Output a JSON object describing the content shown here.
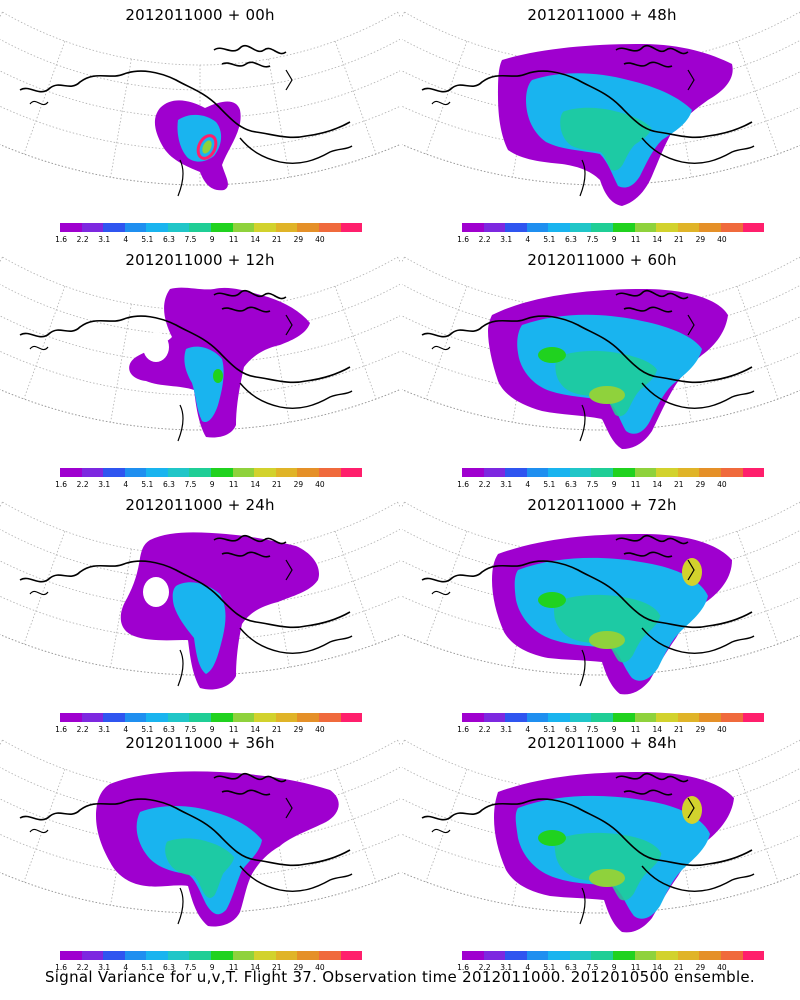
{
  "figure": {
    "caption": "Signal Variance for u,v,T. Flight 37. Observation time 2012011000. 2012010500 ensemble."
  },
  "colorbar": {
    "labels": [
      "1.6",
      "2.2",
      "3.1",
      "4",
      "5.1",
      "6.3",
      "7.5",
      "9",
      "11",
      "14",
      "21",
      "29",
      "40"
    ],
    "colors": [
      "#9f00cf",
      "#7d28e0",
      "#2f55f0",
      "#1f8ff0",
      "#19b4ef",
      "#20c6c8",
      "#1fce96",
      "#20d21f",
      "#8fd23c",
      "#d2d22d",
      "#e0b428",
      "#e59028",
      "#f06a3c",
      "#ff1f6c"
    ]
  },
  "panels": [
    {
      "title": "2012011000 + 00h",
      "lead": 0
    },
    {
      "title": "2012011000 + 12h",
      "lead": 12
    },
    {
      "title": "2012011000 + 24h",
      "lead": 24
    },
    {
      "title": "2012011000 + 36h",
      "lead": 36
    },
    {
      "title": "2012011000 + 48h",
      "lead": 48
    },
    {
      "title": "2012011000 + 60h",
      "lead": 60
    },
    {
      "title": "2012011000 + 72h",
      "lead": 72
    },
    {
      "title": "2012011000 + 84h",
      "lead": 84
    }
  ]
}
